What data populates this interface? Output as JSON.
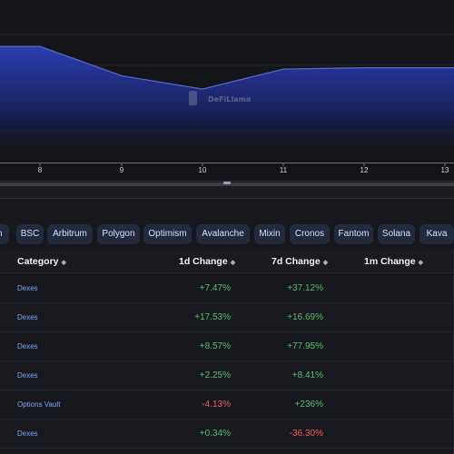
{
  "chart": {
    "x_ticks": [
      "8",
      "9",
      "10",
      "11",
      "12",
      "13"
    ],
    "series_relative_level": [
      0.87,
      0.87,
      0.65,
      0.55,
      0.7,
      0.71,
      0.71,
      0.71
    ],
    "watermark_text": "DeFiLlama",
    "area_color": "#2d3fb8",
    "line_color": "#4b64e6"
  },
  "chains": [
    "on",
    "BSC",
    "Arbitrum",
    "Polygon",
    "Optimism",
    "Avalanche",
    "Mixin",
    "Cronos",
    "Fantom",
    "Solana",
    "Kava"
  ],
  "table": {
    "headers": {
      "category": "Category",
      "change_1d": "1d Change",
      "change_7d": "7d Change",
      "change_1m": "1m Change"
    },
    "rows": [
      {
        "category": "Dexes",
        "change_1d": "+7.47%",
        "change_7d": "+37.12%",
        "d1_sign": "pos",
        "d7_sign": "pos"
      },
      {
        "category": "Dexes",
        "change_1d": "+17.53%",
        "change_7d": "+16.69%",
        "d1_sign": "pos",
        "d7_sign": "pos"
      },
      {
        "category": "Dexes",
        "change_1d": "+8.57%",
        "change_7d": "+77.95%",
        "d1_sign": "pos",
        "d7_sign": "pos"
      },
      {
        "category": "Dexes",
        "change_1d": "+2.25%",
        "change_7d": "+8.41%",
        "d1_sign": "pos",
        "d7_sign": "pos"
      },
      {
        "category": "Options Vault",
        "change_1d": "-4.13%",
        "change_7d": "+236%",
        "d1_sign": "neg",
        "d7_sign": "pos"
      },
      {
        "category": "Dexes",
        "change_1d": "+0.34%",
        "change_7d": "-36.30%",
        "d1_sign": "pos",
        "d7_sign": "neg"
      }
    ]
  },
  "colors": {
    "positive": "#4fc36f",
    "negative": "#ff5a5a",
    "category_link": "#7aa6ff"
  }
}
